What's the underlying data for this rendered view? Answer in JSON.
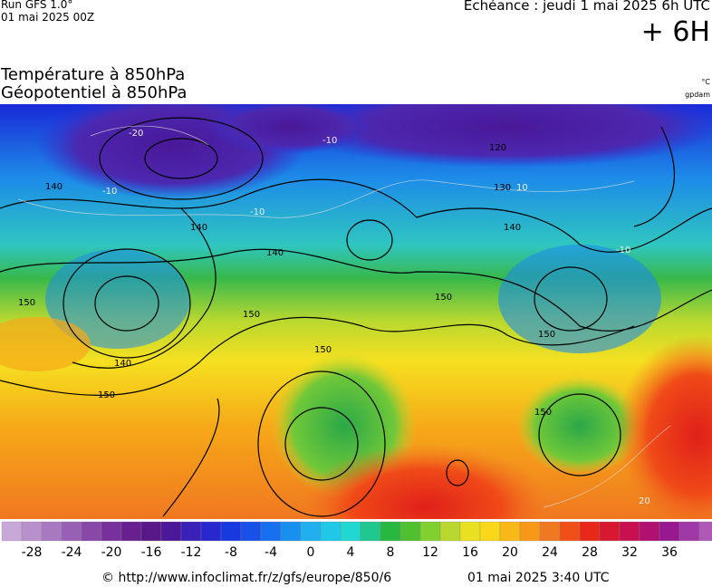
{
  "header": {
    "run": "Run GFS 1.0°",
    "run_date": "01 mai 2025 00Z",
    "echeance": "Echéance : jeudi 1 mai 2025 6h UTC",
    "offset": "+ 6H",
    "title_temperature": "Température à 850hPa",
    "title_geopotential": "Géopotentiel à 850hPa",
    "unit_temperature": "°C",
    "unit_geopotential": "gpdam"
  },
  "map": {
    "contour_labels": [
      "-20",
      "-10",
      "-10",
      "-10",
      "140",
      "140",
      "140",
      "140",
      "150",
      "150",
      "150",
      "150",
      "150",
      "140",
      "130",
      "120",
      "150",
      "10",
      "-10",
      "150",
      "20"
    ]
  },
  "colorbar": {
    "ticks": [
      -28,
      -24,
      -20,
      -16,
      -12,
      -8,
      -4,
      0,
      4,
      8,
      12,
      16,
      20,
      24,
      28,
      32,
      36
    ]
  },
  "footer": {
    "url": "© http://www.infoclimat.fr/z/gfs/europe/850/6",
    "generated": "01 mai 2025  3:40 UTC"
  }
}
